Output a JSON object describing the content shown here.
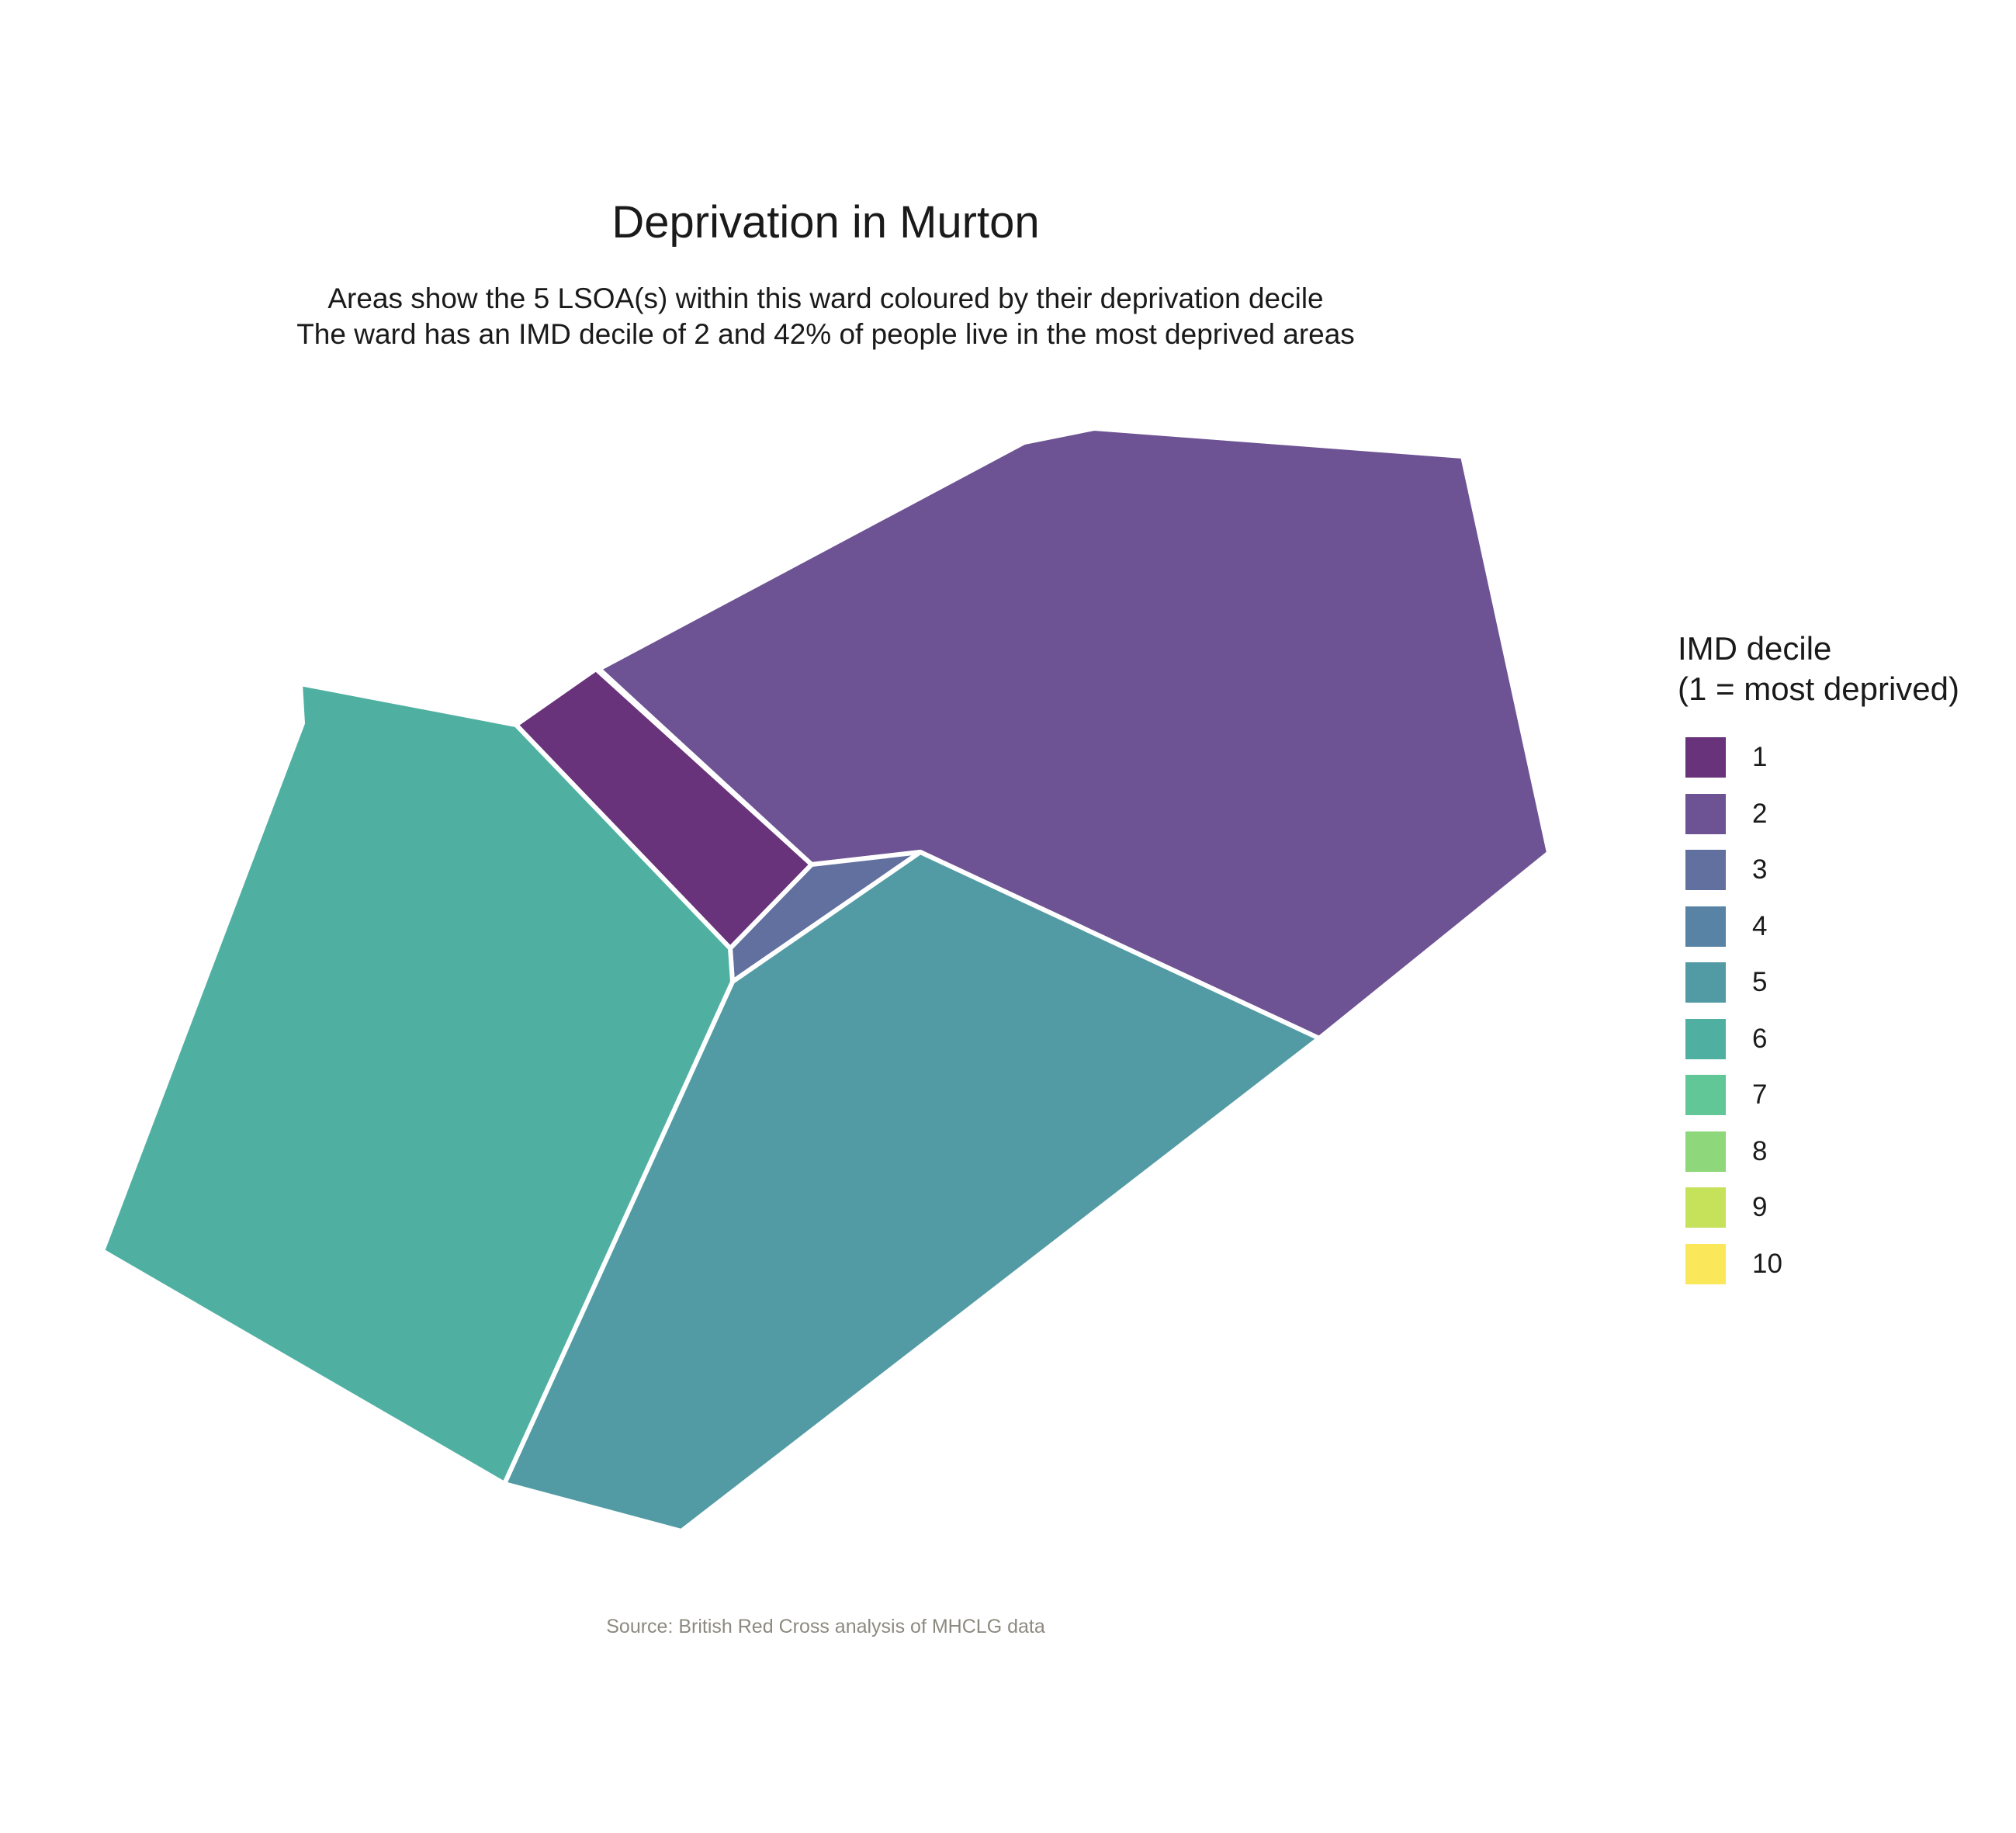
{
  "title": "Deprivation in Murton",
  "subtitle_line1": "Areas show the 5 LSOA(s) within this ward coloured by their deprivation decile",
  "subtitle_line2": "The ward has an IMD decile of 2 and 42% of people live in the most deprived areas",
  "caption": "Source: British Red Cross analysis of MHCLG data",
  "legend": {
    "title_line1": "IMD decile",
    "title_line2": "(1 = most deprived)",
    "items": [
      {
        "label": "1",
        "color": "#68337a"
      },
      {
        "label": "2",
        "color": "#6d5393"
      },
      {
        "label": "3",
        "color": "#62709f"
      },
      {
        "label": "4",
        "color": "#5883a4"
      },
      {
        "label": "5",
        "color": "#539ba4"
      },
      {
        "label": "6",
        "color": "#4fb0a2"
      },
      {
        "label": "7",
        "color": "#61c796"
      },
      {
        "label": "8",
        "color": "#8ed77a"
      },
      {
        "label": "9",
        "color": "#c6e25b"
      },
      {
        "label": "10",
        "color": "#fbe85a"
      }
    ]
  },
  "map_data": {
    "areas": [
      {
        "name": "lsoa-decile-1",
        "decile": 1
      },
      {
        "name": "lsoa-decile-2",
        "decile": 2
      },
      {
        "name": "lsoa-decile-3",
        "decile": 3
      },
      {
        "name": "lsoa-decile-5",
        "decile": 5
      },
      {
        "name": "lsoa-decile-6",
        "decile": 6
      }
    ]
  }
}
